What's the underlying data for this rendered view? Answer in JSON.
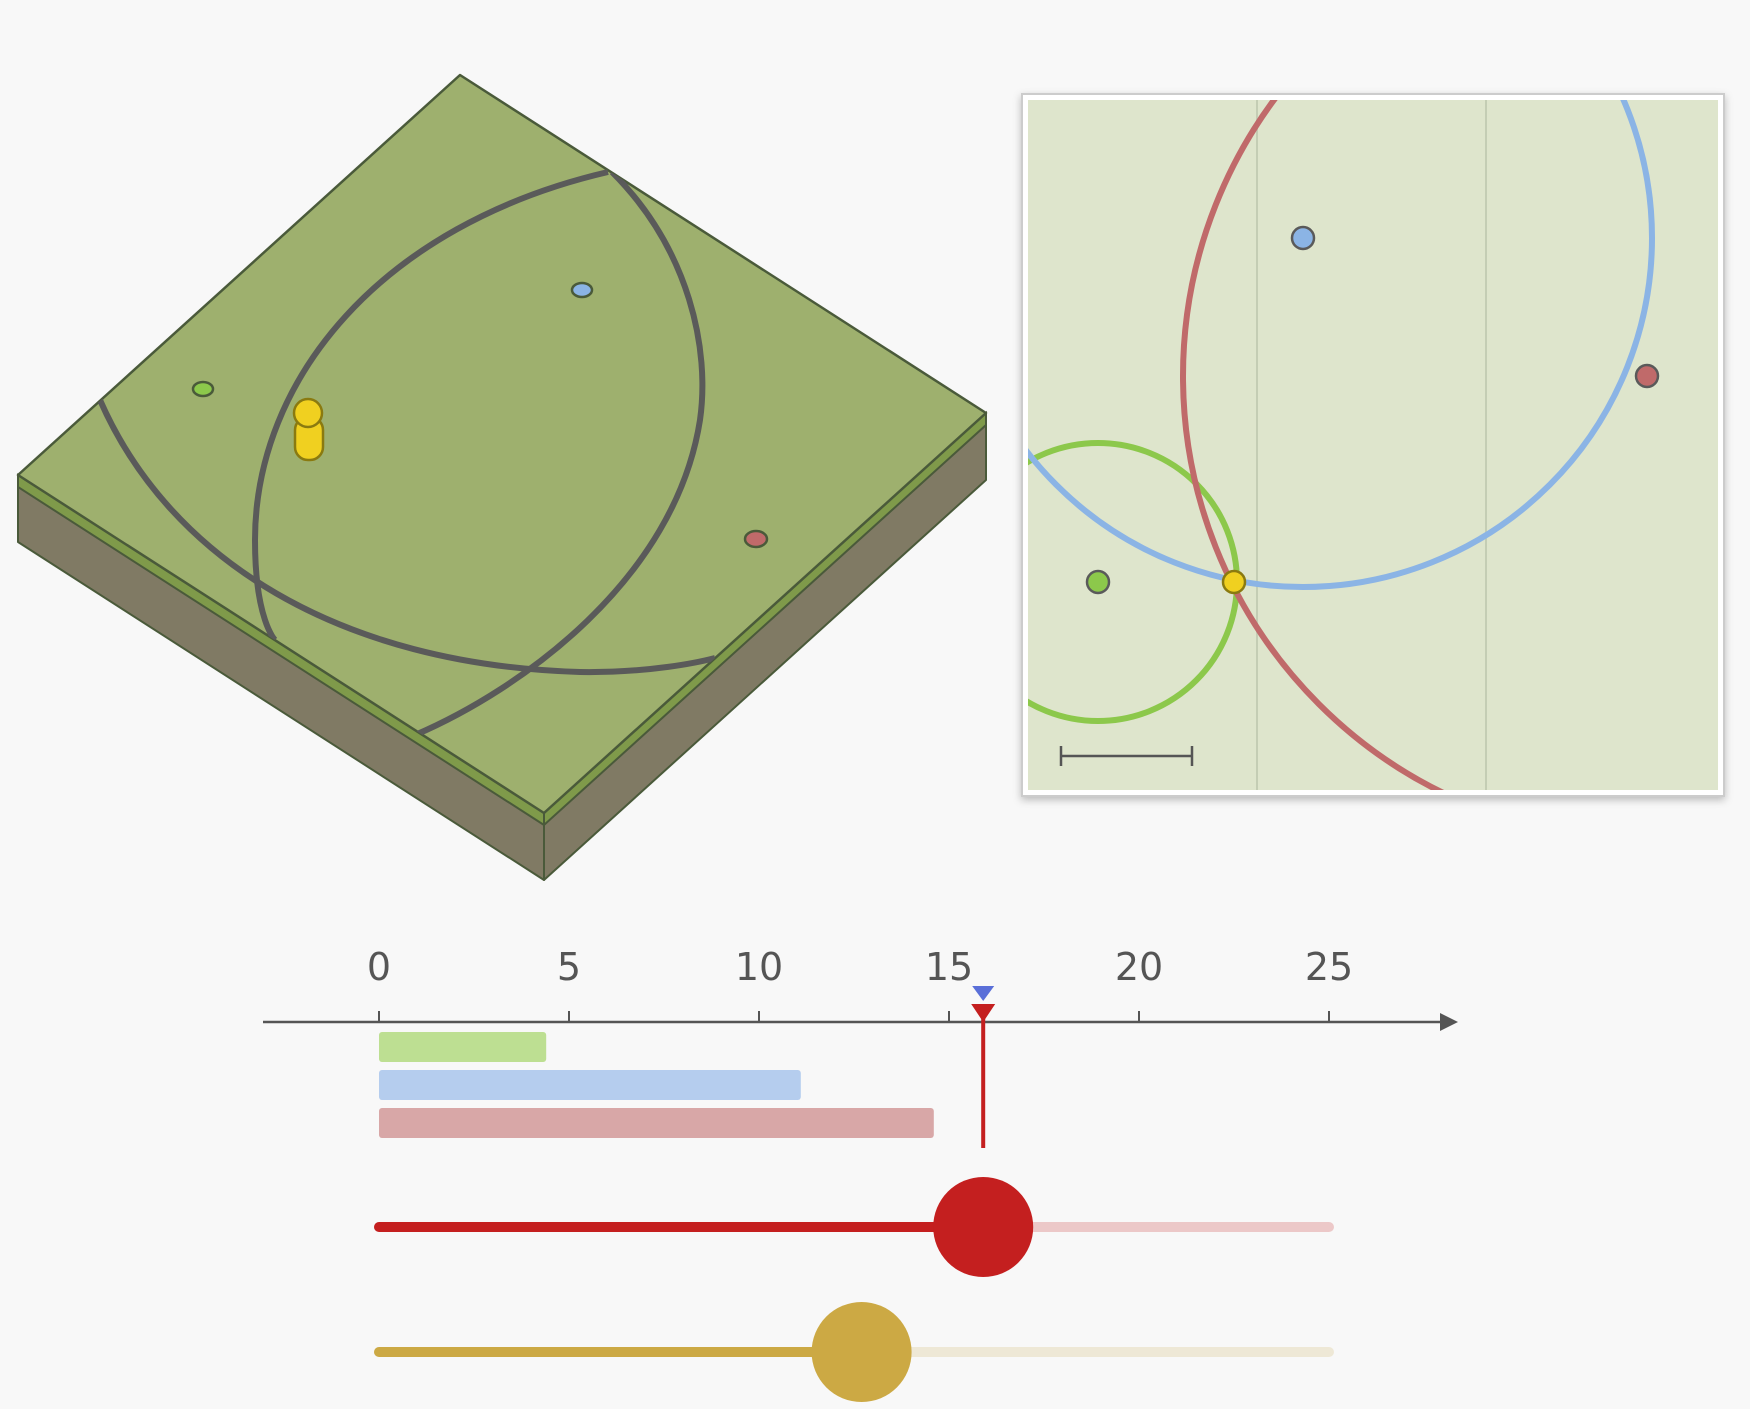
{
  "colors": {
    "background": "#f8f8f8",
    "terrain_top": "#9eb06e",
    "terrain_side": "#807a64",
    "terrain_edge": "#4a5a3a",
    "circle_line": "#5a5a5a",
    "map_background": "#dee5cc",
    "green": "#8cc84b",
    "blue": "#8bb4e5",
    "red": "#c06a6a",
    "yellow": "#f0d020",
    "gold": "#cca944",
    "slider_red": "#c41f1f"
  },
  "axis": {
    "ticks": [
      "0",
      "5",
      "10",
      "15",
      "20",
      "25"
    ],
    "tick_values": [
      0,
      5,
      10,
      15,
      20,
      25
    ],
    "max": 28
  },
  "bars": [
    {
      "color": "green",
      "value": 4.4
    },
    {
      "color": "blue",
      "value": 11.1
    },
    {
      "color": "red",
      "value": 14.6
    }
  ],
  "markers": {
    "red_time": 15.9,
    "blue_time": 15.9
  },
  "sliders": {
    "time_value": 15.9,
    "time_max": 25,
    "secondary_value": 12.7,
    "secondary_max": 25
  },
  "icons": {
    "person": "person-icon",
    "scale_bar": "scale-bar-icon"
  }
}
